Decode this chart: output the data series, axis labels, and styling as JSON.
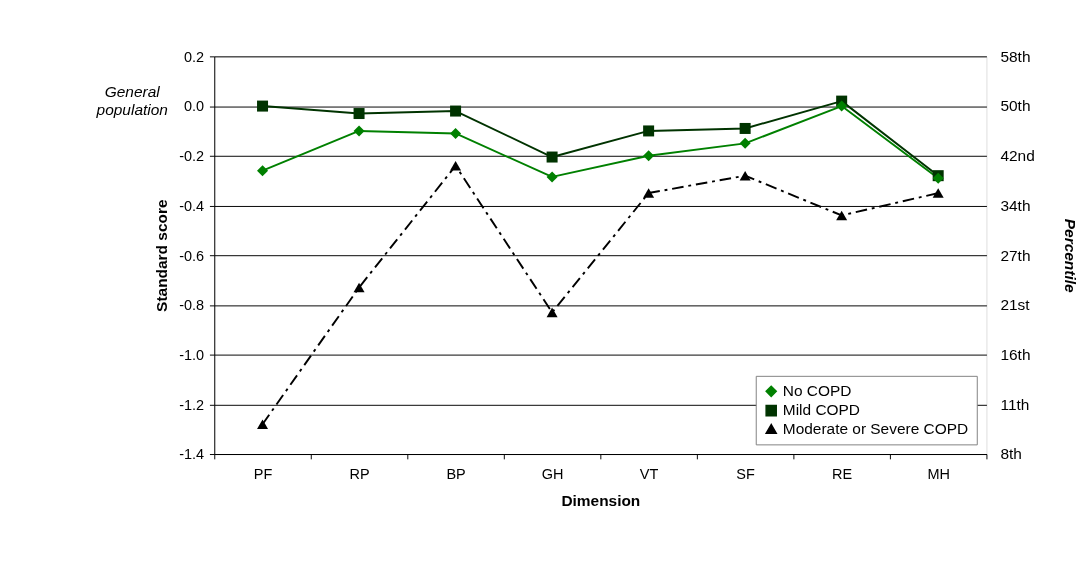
{
  "chart_data": {
    "type": "line",
    "xlabel": "Dimension",
    "ylabel": "Standard score",
    "y2label": "Percentile",
    "categories": [
      "PF",
      "RP",
      "BP",
      "GH",
      "VT",
      "SF",
      "RE",
      "MH"
    ],
    "series": [
      {
        "name": "No COPD",
        "color": "#008000",
        "marker": "diamond",
        "line_style": "solid",
        "values": [
          -0.26,
          -0.1,
          -0.11,
          -0.285,
          -0.2,
          -0.15,
          0.0,
          -0.29
        ]
      },
      {
        "name": "Mild COPD",
        "color": "#003300",
        "marker": "square",
        "line_style": "solid",
        "values": [
          0.0,
          -0.03,
          -0.02,
          -0.205,
          -0.1,
          -0.09,
          0.02,
          -0.28
        ]
      },
      {
        "name": "Moderate or Severe COPD",
        "color": "#000000",
        "marker": "triangle",
        "line_style": "dashed",
        "values": [
          -1.28,
          -0.73,
          -0.24,
          -0.83,
          -0.35,
          -0.28,
          -0.44,
          -0.35
        ]
      }
    ],
    "ylim": [
      -1.4,
      0.2
    ],
    "yticks": [
      {
        "value": -1.4,
        "label": "-1.4"
      },
      {
        "value": -1.2,
        "label": "-1.2"
      },
      {
        "value": -1.0,
        "label": "-1.0"
      },
      {
        "value": -0.8,
        "label": "-0.8"
      },
      {
        "value": -0.6,
        "label": "-0.6"
      },
      {
        "value": -0.4,
        "label": "-0.4"
      },
      {
        "value": -0.2,
        "label": "-0.2"
      },
      {
        "value": 0.0,
        "label": "0.0"
      },
      {
        "value": 0.2,
        "label": "0.2"
      }
    ],
    "y2_categories": [
      "58th",
      "50th",
      "42nd",
      "34th",
      "27th",
      "21st",
      "16th",
      "11th",
      "8th"
    ],
    "annotations": [
      "General population"
    ],
    "grid": "y",
    "legend": "bottom right"
  }
}
